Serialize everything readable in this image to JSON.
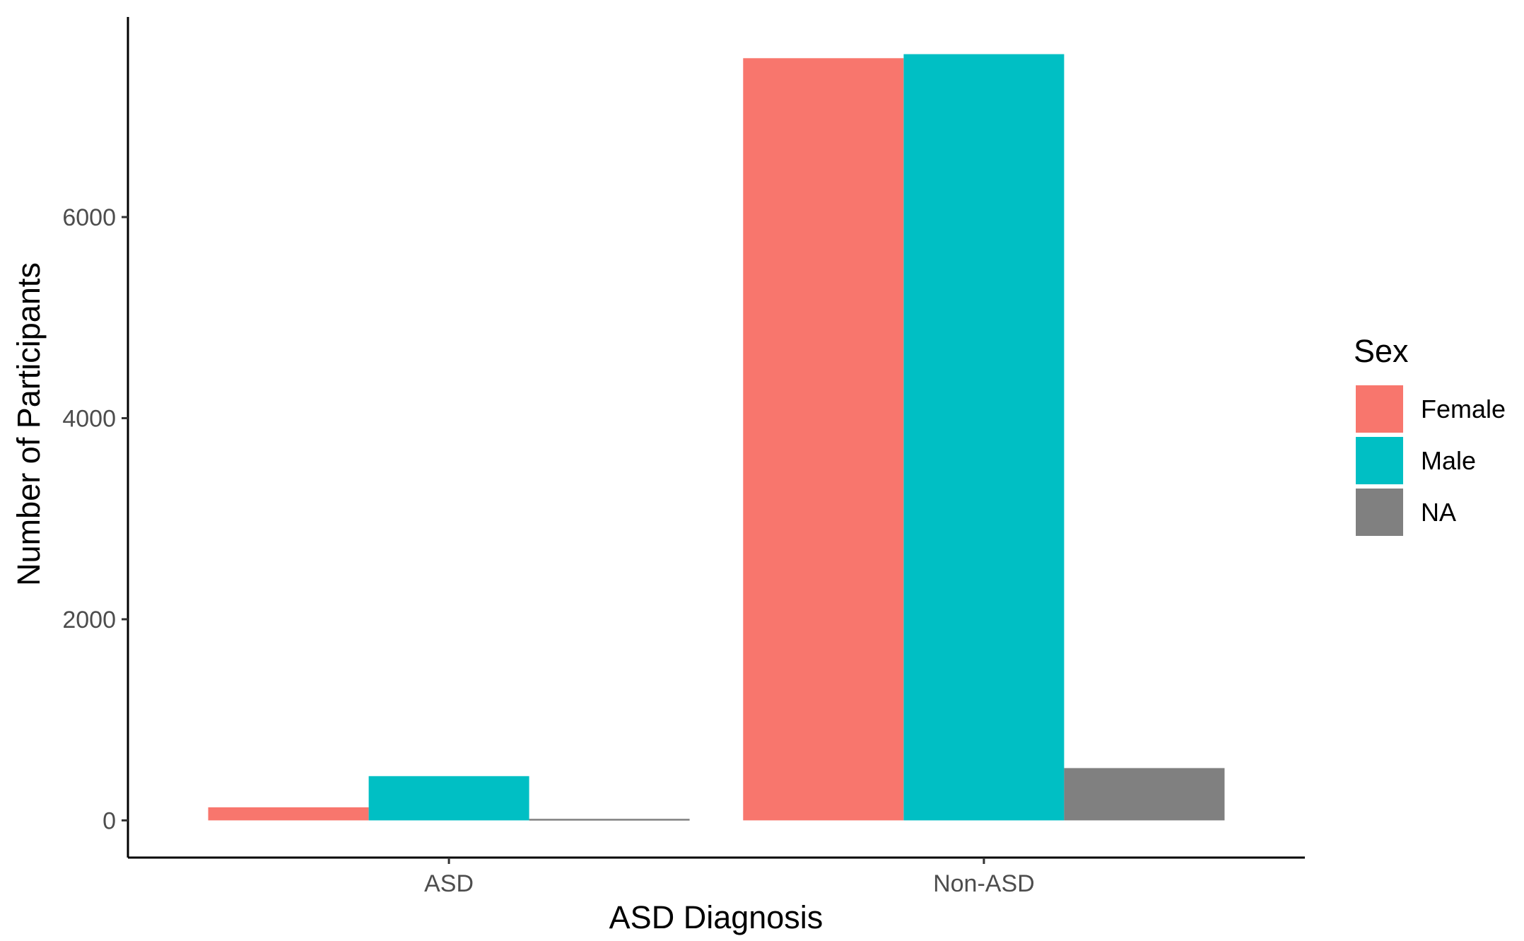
{
  "chart_data": {
    "type": "bar",
    "title": "",
    "xlabel": "ASD Diagnosis",
    "ylabel": "Number of Participants",
    "categories": [
      "ASD",
      "Non-ASD"
    ],
    "series": [
      {
        "name": "Female",
        "color": "#F8766D",
        "values": [
          130,
          7580
        ]
      },
      {
        "name": "Male",
        "color": "#00BFC4",
        "values": [
          440,
          7620
        ]
      },
      {
        "name": "NA",
        "color": "#808080",
        "values": [
          15,
          520
        ]
      }
    ],
    "ylim": [
      -370,
      7990
    ],
    "yticks": [
      0,
      2000,
      4000,
      6000
    ],
    "ytick_labels": [
      "0",
      "2000",
      "4000",
      "6000"
    ],
    "grid": false,
    "legend": {
      "title": "Sex",
      "position": "right"
    }
  }
}
